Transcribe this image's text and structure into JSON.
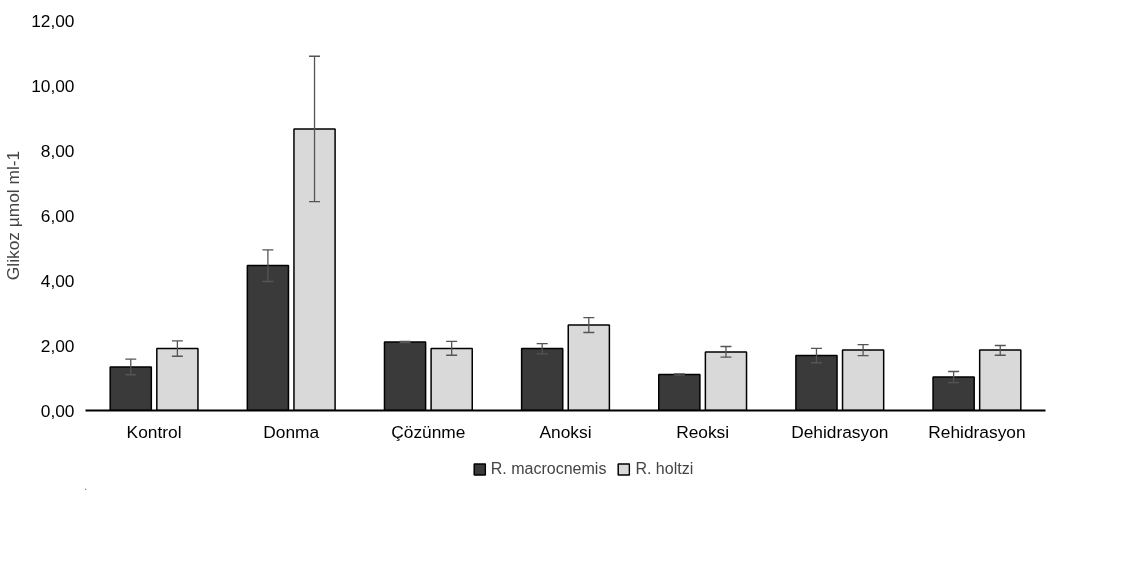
{
  "chart_data": {
    "type": "bar",
    "ylabel": "Glikoz µmol ml-1",
    "categories": [
      "Kontrol",
      "Donma",
      "Çözünme",
      "Anoksi",
      "Reoksi",
      "Dehidrasyon",
      "Rehidrasyon"
    ],
    "series": [
      {
        "name": "R. macrocnemis",
        "color": "#3a3a3a",
        "values": [
          1.34,
          4.46,
          2.11,
          1.91,
          1.11,
          1.69,
          1.03
        ],
        "errors": [
          [
            1.1,
            1.58
          ],
          [
            3.97,
            4.94
          ],
          [
            2.09,
            2.13
          ],
          [
            1.74,
            2.06
          ],
          [
            1.09,
            1.13
          ],
          [
            1.47,
            1.91
          ],
          [
            0.86,
            1.2
          ]
        ]
      },
      {
        "name": "R. holtzi",
        "color": "#d9d9d9",
        "values": [
          1.91,
          8.66,
          1.91,
          2.63,
          1.8,
          1.86,
          1.86
        ],
        "errors": [
          [
            1.67,
            2.14
          ],
          [
            6.43,
            10.9
          ],
          [
            1.7,
            2.13
          ],
          [
            2.4,
            2.86
          ],
          [
            1.64,
            1.97
          ],
          [
            1.69,
            2.03
          ],
          [
            1.7,
            2.0
          ]
        ]
      }
    ],
    "ylim": [
      0,
      12
    ],
    "yticks": [
      {
        "value": 0,
        "label": "0,00"
      },
      {
        "value": 2,
        "label": "2,00"
      },
      {
        "value": 4,
        "label": "4,00"
      },
      {
        "value": 6,
        "label": "6,00"
      },
      {
        "value": 8,
        "label": "8,00"
      },
      {
        "value": 10,
        "label": "10,00"
      },
      {
        "value": 12,
        "label": "12,00"
      }
    ],
    "grid": false,
    "legend": "bottom"
  }
}
